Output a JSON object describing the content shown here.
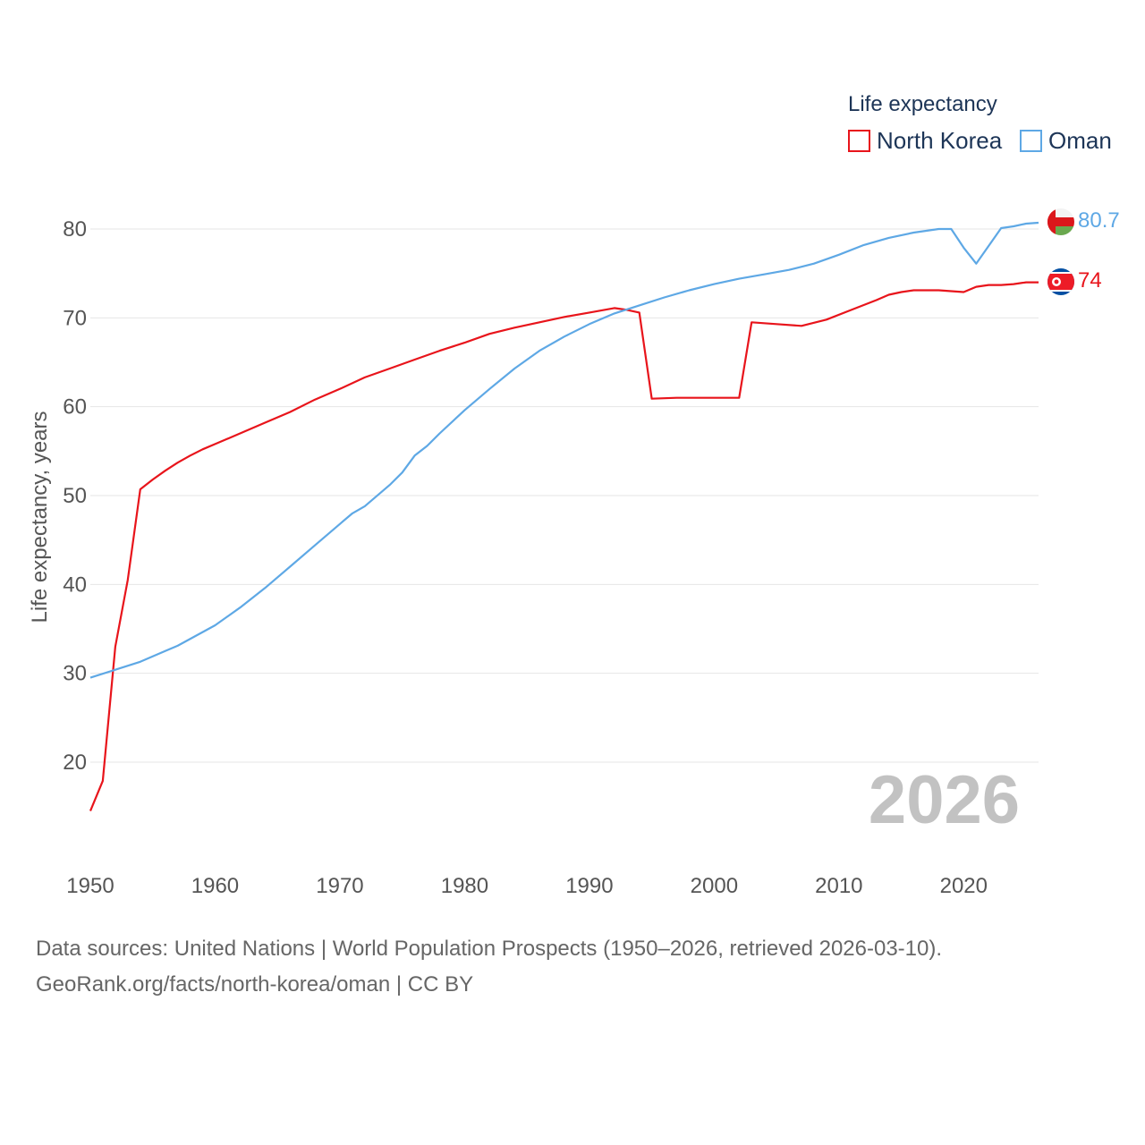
{
  "chart_data": {
    "type": "line",
    "title": "",
    "xlabel": "",
    "ylabel": "Life expectancy, years",
    "xlim": [
      1950,
      2026
    ],
    "ylim": [
      10,
      85
    ],
    "x_ticks": [
      1950,
      1960,
      1970,
      1980,
      1990,
      2000,
      2010,
      2020
    ],
    "y_ticks": [
      20,
      30,
      40,
      50,
      60,
      70,
      80
    ],
    "legend_title": "Life expectancy",
    "legend_position": "top-right",
    "watermark_year": "2026",
    "grid": true,
    "series": [
      {
        "name": "North Korea",
        "color": "#e8141b",
        "end_label": "74",
        "flag": "north-korea-flag",
        "points": [
          [
            1950,
            14.5
          ],
          [
            1951,
            17.9
          ],
          [
            1952,
            33.0
          ],
          [
            1953,
            40.5
          ],
          [
            1954,
            50.7
          ],
          [
            1955,
            51.8
          ],
          [
            1956,
            52.8
          ],
          [
            1957,
            53.7
          ],
          [
            1958,
            54.5
          ],
          [
            1959,
            55.2
          ],
          [
            1960,
            55.8
          ],
          [
            1962,
            57.0
          ],
          [
            1964,
            58.2
          ],
          [
            1966,
            59.4
          ],
          [
            1968,
            60.8
          ],
          [
            1970,
            62.0
          ],
          [
            1972,
            63.3
          ],
          [
            1974,
            64.3
          ],
          [
            1976,
            65.3
          ],
          [
            1978,
            66.3
          ],
          [
            1980,
            67.2
          ],
          [
            1982,
            68.2
          ],
          [
            1984,
            68.9
          ],
          [
            1986,
            69.5
          ],
          [
            1988,
            70.1
          ],
          [
            1990,
            70.6
          ],
          [
            1992,
            71.1
          ],
          [
            1993,
            70.9
          ],
          [
            1994,
            70.6
          ],
          [
            1995,
            60.9
          ],
          [
            1997,
            61.0
          ],
          [
            2000,
            61.0
          ],
          [
            2002,
            61.0
          ],
          [
            2003,
            69.5
          ],
          [
            2005,
            69.3
          ],
          [
            2007,
            69.1
          ],
          [
            2009,
            69.8
          ],
          [
            2011,
            70.9
          ],
          [
            2013,
            72.0
          ],
          [
            2014,
            72.6
          ],
          [
            2015,
            72.9
          ],
          [
            2016,
            73.1
          ],
          [
            2018,
            73.1
          ],
          [
            2020,
            72.9
          ],
          [
            2021,
            73.5
          ],
          [
            2022,
            73.7
          ],
          [
            2023,
            73.7
          ],
          [
            2024,
            73.8
          ],
          [
            2025,
            74.0
          ],
          [
            2026,
            74.0
          ]
        ]
      },
      {
        "name": "Oman",
        "color": "#5ea8e5",
        "end_label": "80.7",
        "flag": "oman-flag",
        "points": [
          [
            1950,
            29.5
          ],
          [
            1952,
            30.4
          ],
          [
            1954,
            31.3
          ],
          [
            1956,
            32.5
          ],
          [
            1957,
            33.1
          ],
          [
            1960,
            35.4
          ],
          [
            1962,
            37.4
          ],
          [
            1964,
            39.6
          ],
          [
            1966,
            42.0
          ],
          [
            1968,
            44.4
          ],
          [
            1970,
            46.8
          ],
          [
            1971,
            48.0
          ],
          [
            1972,
            48.8
          ],
          [
            1974,
            51.2
          ],
          [
            1975,
            52.6
          ],
          [
            1976,
            54.5
          ],
          [
            1977,
            55.6
          ],
          [
            1978,
            57.0
          ],
          [
            1980,
            59.6
          ],
          [
            1982,
            62.0
          ],
          [
            1984,
            64.3
          ],
          [
            1986,
            66.3
          ],
          [
            1988,
            67.9
          ],
          [
            1990,
            69.3
          ],
          [
            1992,
            70.5
          ],
          [
            1994,
            71.4
          ],
          [
            1996,
            72.3
          ],
          [
            1998,
            73.1
          ],
          [
            2000,
            73.8
          ],
          [
            2002,
            74.4
          ],
          [
            2004,
            74.9
          ],
          [
            2006,
            75.4
          ],
          [
            2008,
            76.1
          ],
          [
            2010,
            77.1
          ],
          [
            2012,
            78.2
          ],
          [
            2014,
            79.0
          ],
          [
            2016,
            79.6
          ],
          [
            2018,
            80.0
          ],
          [
            2019,
            80.0
          ],
          [
            2020,
            77.9
          ],
          [
            2021,
            76.1
          ],
          [
            2023,
            80.1
          ],
          [
            2024,
            80.3
          ],
          [
            2025,
            80.6
          ],
          [
            2026,
            80.7
          ]
        ]
      }
    ]
  },
  "footer": {
    "source_line": "Data sources: United Nations | World Population Prospects (1950–2026, retrieved 2026-03-10).",
    "url_line": "GeoRank.org/facts/north-korea/oman | CC BY"
  }
}
